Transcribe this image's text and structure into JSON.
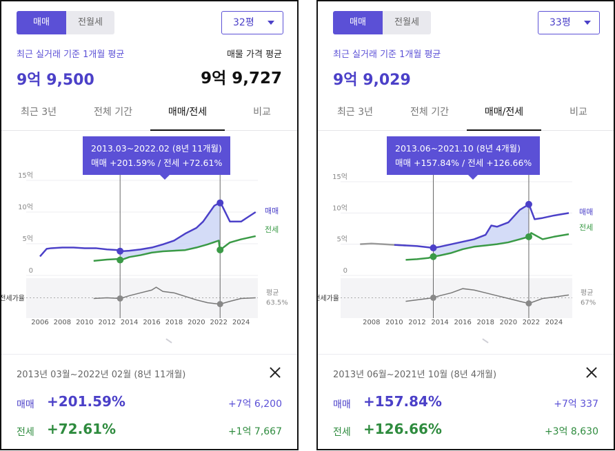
{
  "panels": [
    {
      "toggle": {
        "sale": "매매",
        "rent": "전월세"
      },
      "size_select": "32평",
      "avg_label": "최근 실거래 기준 1개월 평균",
      "avg_value": "9억 9,500",
      "listing_label": "매물 가격 평균",
      "listing_value": "9억 9,727",
      "tabs": [
        "최근 3년",
        "전체 기간",
        "매매/전세",
        "비교"
      ],
      "active_tab": 2,
      "tooltip": {
        "period": "2013.03~2022.02 (8년 11개월)",
        "change": "매매 +201.59%  /  전세 +72.61%"
      },
      "summary": {
        "period": "2013년 03월~2022년 02월 (8년 11개월)",
        "sale_label": "매매",
        "sale_pct": "+201.59%",
        "sale_amount": "+7억 6,200",
        "jeonse_label": "전세",
        "jeonse_pct": "+72.61%",
        "jeonse_amount": "+1억 7,667"
      }
    },
    {
      "toggle": {
        "sale": "매매",
        "rent": "전월세"
      },
      "size_select": "33평",
      "avg_label": "최근 실거래 기준 1개월 평균",
      "avg_value": "9억 9,029",
      "listing_label": "",
      "listing_value": "",
      "tabs": [
        "최근 3년",
        "전체 기간",
        "매매/전세",
        "비교"
      ],
      "active_tab": 2,
      "tooltip": {
        "period": "2013.06~2021.10 (8년 4개월)",
        "change": "매매 +157.84%  /  전세 +126.66%"
      },
      "summary": {
        "period": "2013년 06월~2021년 10월 (8년 4개월)",
        "sale_label": "매매",
        "sale_pct": "+157.84%",
        "sale_amount": "+7억 337",
        "jeonse_label": "전세",
        "jeonse_pct": "+126.66%",
        "jeonse_amount": "+3억 8,630"
      }
    }
  ],
  "chart_data": [
    {
      "type": "line",
      "y_ticks": [
        "15억",
        "10억",
        "5억",
        "0"
      ],
      "ylim": [
        0,
        15
      ],
      "x_ticks": [
        "2006",
        "2008",
        "2010",
        "2012",
        "2014",
        "2016",
        "2018",
        "2020",
        "2022",
        "2024"
      ],
      "xlim": [
        2006,
        2025.5
      ],
      "ratio_label": "전세가율",
      "ratio_avg_label": "평균",
      "ratio_avg_value": "63.5%",
      "colors": {
        "sale": "#4b40c8",
        "jeonse": "#3a9a46",
        "ratio": "#777777",
        "fill": "#c9d3f5"
      },
      "markers": {
        "start": 2013.17,
        "end": 2022.12
      },
      "series": [
        {
          "name": "매매",
          "x": [
            2006,
            2006.6,
            2007,
            2008,
            2009,
            2010,
            2011,
            2012,
            2013,
            2013.2,
            2014,
            2015,
            2016,
            2017,
            2018,
            2019,
            2020,
            2020.6,
            2021,
            2021.6,
            2022.1,
            2022.3,
            2023,
            2024,
            2024.6,
            2025.3
          ],
          "y": [
            3.0,
            4.2,
            4.3,
            4.4,
            4.4,
            4.3,
            4.3,
            4.1,
            4.0,
            3.8,
            3.9,
            4.1,
            4.4,
            4.9,
            5.5,
            6.6,
            7.5,
            8.5,
            9.5,
            11.0,
            11.5,
            11.0,
            8.5,
            8.5,
            9.2,
            10.0
          ]
        },
        {
          "name": "전세",
          "x": [
            2010.8,
            2012,
            2013,
            2013.2,
            2014,
            2015,
            2016,
            2017,
            2018,
            2019,
            2020,
            2021,
            2022,
            2022.1,
            2023,
            2024,
            2025.3
          ],
          "y": [
            2.3,
            2.5,
            2.6,
            2.4,
            2.9,
            3.2,
            3.6,
            3.8,
            3.9,
            4.0,
            4.4,
            4.9,
            5.5,
            4.0,
            5.2,
            5.7,
            6.2
          ]
        },
        {
          "name": "전세가율",
          "x": [
            2010.8,
            2012,
            2013.2,
            2014,
            2015,
            2016,
            2016.4,
            2017,
            2018,
            2019,
            2020,
            2021,
            2022.1,
            2023,
            2024,
            2025.3
          ],
          "y": [
            62,
            63,
            62,
            66,
            70,
            74,
            78,
            72,
            70,
            65,
            60,
            56,
            54,
            58,
            62,
            63
          ]
        }
      ]
    },
    {
      "type": "line",
      "y_ticks": [
        "15억",
        "10억",
        "5억",
        "0"
      ],
      "ylim": [
        0,
        15
      ],
      "x_ticks": [
        "2008",
        "2010",
        "2012",
        "2014",
        "2016",
        "2018",
        "2020",
        "2022",
        "2024"
      ],
      "xlim": [
        2006.5,
        2025.6
      ],
      "ratio_label": "전세가율",
      "ratio_avg_label": "평균",
      "ratio_avg_value": "67%",
      "colors": {
        "sale": "#4b40c8",
        "jeonse": "#3a9a46",
        "ratio": "#777777",
        "fill": "#c9d3f5",
        "pre": "#9a9a9a"
      },
      "markers": {
        "start": 2013.42,
        "end": 2021.79
      },
      "series": [
        {
          "name": "매매",
          "x": [
            2007,
            2008,
            2009,
            2010,
            2011,
            2012,
            2013,
            2013.4,
            2014,
            2015,
            2016,
            2017,
            2018,
            2018.5,
            2019,
            2020,
            2021,
            2021.8,
            2022.3,
            2023,
            2024,
            2025.3
          ],
          "y": [
            5.0,
            5.1,
            5.0,
            4.9,
            4.8,
            4.7,
            4.5,
            4.4,
            4.6,
            5.0,
            5.4,
            5.8,
            6.5,
            8.0,
            7.8,
            8.5,
            10.5,
            11.4,
            9.0,
            9.2,
            9.6,
            10.0
          ]
        },
        {
          "name": "전세",
          "x": [
            2011,
            2012,
            2013,
            2013.4,
            2014,
            2015,
            2016,
            2017,
            2018,
            2019,
            2020,
            2021,
            2021.8,
            2022,
            2023,
            2024,
            2025.3
          ],
          "y": [
            2.5,
            2.6,
            2.8,
            3.0,
            3.2,
            3.6,
            4.2,
            4.6,
            4.8,
            5.0,
            5.3,
            5.8,
            6.2,
            6.8,
            5.8,
            6.2,
            6.6
          ]
        },
        {
          "name": "전세가율",
          "x": [
            2011,
            2012,
            2013.4,
            2014,
            2015,
            2016,
            2017,
            2018,
            2019,
            2020,
            2021,
            2021.8,
            2023,
            2024,
            2025.3
          ],
          "y": [
            58,
            60,
            63,
            66,
            70,
            76,
            74,
            70,
            66,
            62,
            58,
            55,
            62,
            64,
            67
          ]
        }
      ]
    }
  ]
}
